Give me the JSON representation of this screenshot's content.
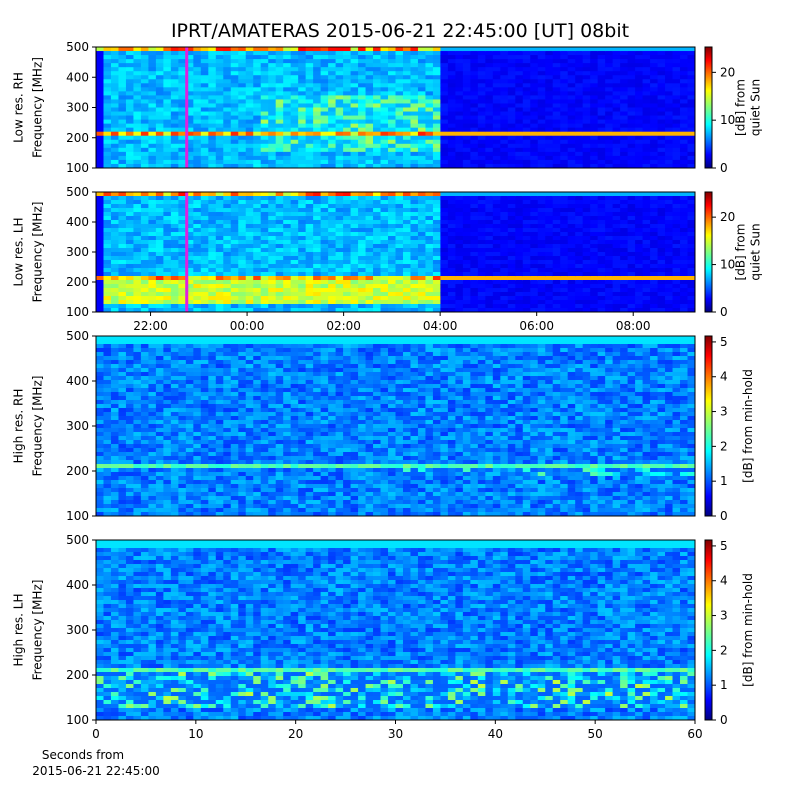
{
  "title": "IPRT/AMATERAS 2015-06-21 22:45:00 [UT]   08bit",
  "chart_data": [
    {
      "type": "heatmap",
      "ylabel": [
        "Low res. RH",
        "Frequency [MHz]"
      ],
      "xlim": [
        20.87,
        33.28
      ],
      "ylim": [
        100,
        500
      ],
      "yticks": [
        100,
        200,
        300,
        400,
        500
      ],
      "marker": 22.75,
      "marker_color": "#e020e0",
      "colorbar": {
        "label": [
          "[dB] from",
          "quiet Sun"
        ],
        "lim": [
          0,
          25.3
        ],
        "ticks": [
          0,
          10,
          20
        ]
      }
    },
    {
      "type": "heatmap",
      "ylabel": [
        "Low res. LH",
        "Frequency [MHz]"
      ],
      "xlim": [
        20.87,
        33.28
      ],
      "ylim": [
        100,
        500
      ],
      "yticks": [
        100,
        200,
        300,
        400,
        500
      ],
      "xticks": [
        {
          "value": 22,
          "label": "22:00"
        },
        {
          "value": 24,
          "label": "00:00"
        },
        {
          "value": 26,
          "label": "02:00"
        },
        {
          "value": 28,
          "label": "04:00"
        },
        {
          "value": 30,
          "label": "06:00"
        },
        {
          "value": 32,
          "label": "08:00"
        }
      ],
      "marker": 22.75,
      "marker_color": "#e020e0",
      "colorbar": {
        "label": [
          "[dB] from",
          "quiet Sun"
        ],
        "lim": [
          0,
          25.3
        ],
        "ticks": [
          0,
          10,
          20
        ]
      }
    },
    {
      "type": "heatmap",
      "ylabel": [
        "High res. RH",
        "Frequency [MHz]"
      ],
      "xlim": [
        0,
        60
      ],
      "ylim": [
        100,
        500
      ],
      "yticks": [
        100,
        200,
        300,
        400,
        500
      ],
      "colorbar": {
        "label": [
          "[dB] from min-hold"
        ],
        "lim": [
          0,
          5.17
        ],
        "ticks": [
          0,
          1,
          2,
          3,
          4,
          5
        ]
      }
    },
    {
      "type": "heatmap",
      "ylabel": [
        "High res. LH",
        "Frequency [MHz]"
      ],
      "xlim": [
        0,
        60
      ],
      "ylim": [
        100,
        500
      ],
      "yticks": [
        100,
        200,
        300,
        400,
        500
      ],
      "xticks": [
        0,
        10,
        20,
        30,
        40,
        50,
        60
      ],
      "xlabel": [
        "Seconds from",
        "2015-06-21 22:45:00"
      ],
      "colorbar": {
        "label": [
          "[dB] from min-hold"
        ],
        "lim": [
          0,
          5.17
        ],
        "ticks": [
          0,
          1,
          2,
          3,
          4,
          5
        ]
      }
    }
  ]
}
